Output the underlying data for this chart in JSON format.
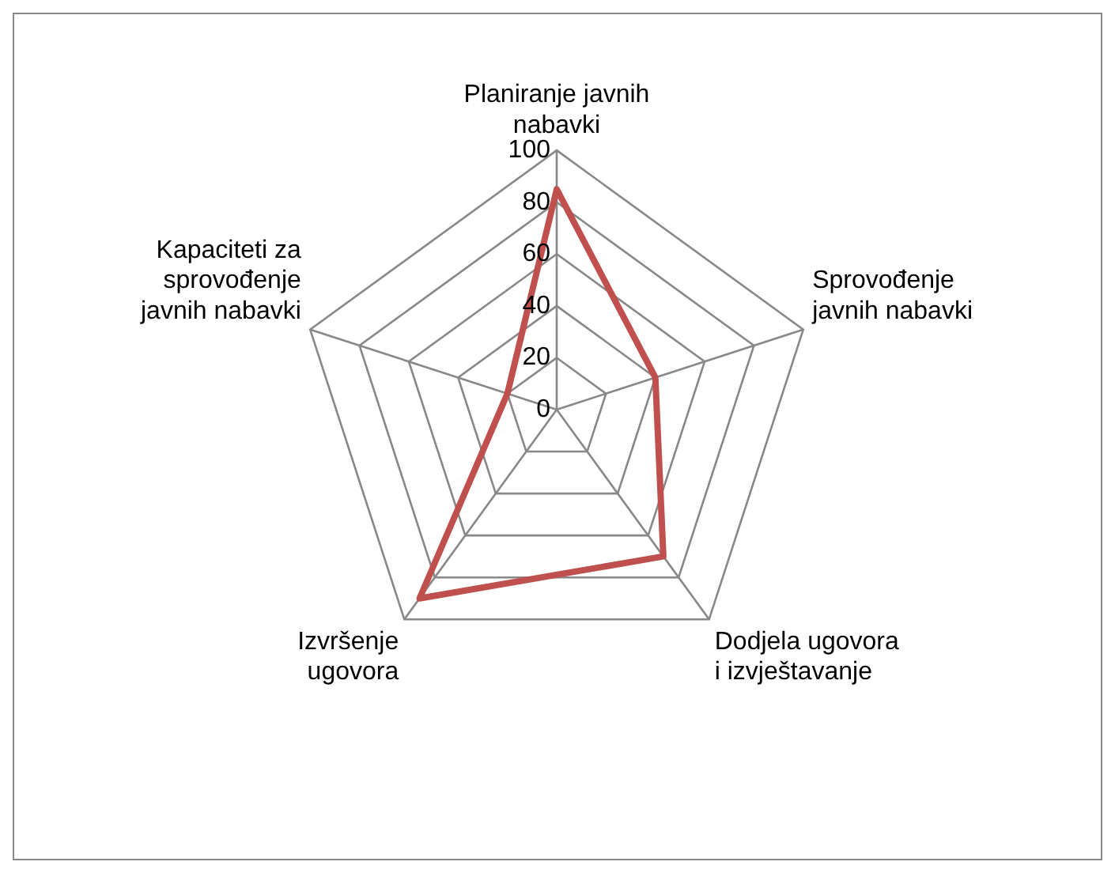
{
  "chart_data": {
    "type": "radar",
    "categories": [
      "Planiranje javnih\nnabavki",
      "Sprovođenje\njavnih nabavki",
      "Dodjela ugovora\ni izvještavanje",
      "Izvršenje\nugovora",
      "Kapaciteti za\nsprovođenje\njavnih nabavki"
    ],
    "series": [
      {
        "color": "#c0504d",
        "values": [
          85,
          40,
          70,
          90,
          20
        ]
      }
    ],
    "ylim": [
      0,
      100
    ],
    "yticks": [
      0,
      20,
      40,
      60,
      80,
      100
    ],
    "grid": true,
    "legend": false,
    "marker": "none"
  }
}
